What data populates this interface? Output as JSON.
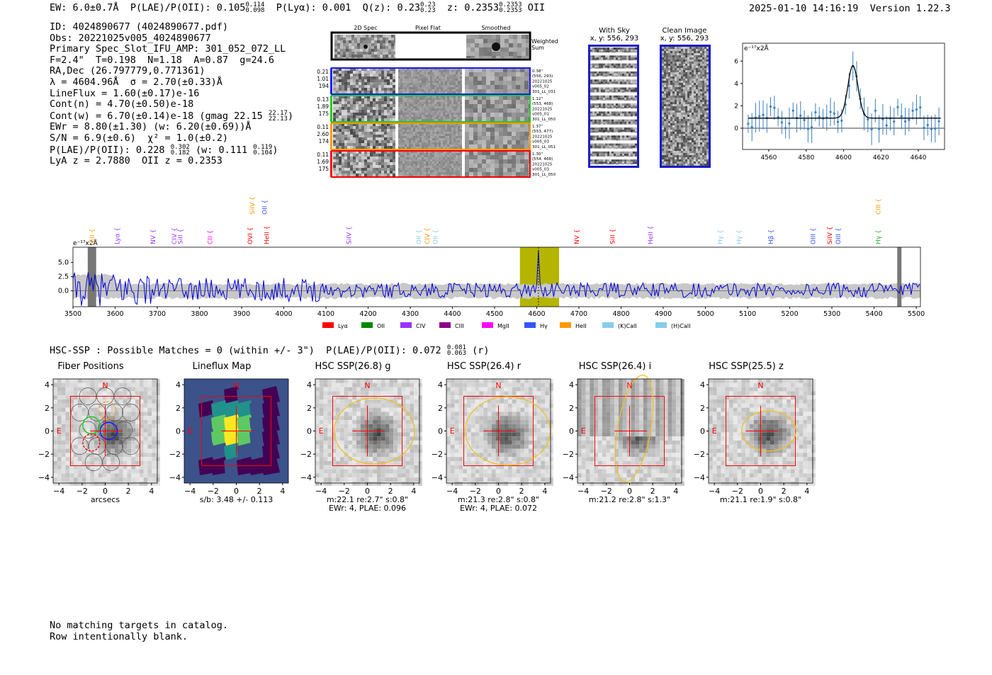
{
  "header": {
    "ew": "EW: 6.0±0.7Å",
    "plae_label": "P(LAE)/P(OII): 0.105",
    "plae_hi": "0.114",
    "plae_lo": "0.098",
    "plya": "P(Lyα): 0.001",
    "qz_label": "Q(z): 0.23",
    "qz_hi": "0.23",
    "qz_lo": "0.23",
    "z_label": "z: 0.2353",
    "z_hi": "0.2353",
    "z_lo": "0.2353",
    "z_line": "OII",
    "timestamp": "2025-01-10 14:16:19",
    "version": "Version 1.22.3"
  },
  "info": {
    "id": "ID: 4024890677 (4024890677.pdf)",
    "obs": "Obs: 20221025v005_4024890677",
    "primary": "Primary Spec_Slot_IFU_AMP: 301_052_072_LL",
    "params": "F=2.4\"  T=0.198  N=1.18  A=0.87  g=24.6",
    "radec": "RA,Dec (26.797779,0.771361)",
    "lambda": "λ = 4604.96Å  σ = 2.70(±0.33)Å",
    "lineflux": "LineFlux = 1.60(±0.17)e-16",
    "contn": "Cont(n) = 4.70(±0.50)e-18",
    "contw": "Cont(w) = 6.70(±0.14)e-18 (gmag 22.15",
    "contw_hi": "22.17",
    "contw_lo": "22.13",
    "ewr": "EWr = 8.80(±1.30) (w: 6.20(±0.69))Å",
    "sn": "S/N = 6.9(±0.6)  χ² = 1.0(±0.2)",
    "plae2": "P(LAE)/P(OII): 0.228",
    "plae2_hi": "0.302",
    "plae2_lo": "0.182",
    "plae2_w": "(w: 0.111",
    "plae2_w_hi": "0.119",
    "plae2_w_lo": "0.104",
    "lya": "LyA z = 2.7880  OII z = 0.2353"
  },
  "cutouts": {
    "col_2d": "2D Spec",
    "col_flat": "Pixel Flat",
    "col_smooth": "Smoothed",
    "weighted": "Weighted Sum",
    "rows": [
      {
        "left": [
          "0.21",
          "1.01",
          "194"
        ],
        "right": [
          "0.38\"",
          "(556, 293)",
          "20221025",
          "v005_02",
          "301_LL_031"
        ],
        "color": "#1a1aff"
      },
      {
        "left": [
          "0.13",
          "1.89",
          "175"
        ],
        "right": [
          "1.12\"",
          "(553, 468)",
          "20221025",
          "v005_01",
          "301_LL_050"
        ],
        "color": "#22cc22"
      },
      {
        "left": [
          "0.11",
          "2.60",
          "174"
        ],
        "right": [
          "1.37\"",
          "(553, 477)",
          "20221025",
          "v005_03",
          "301_LL_051"
        ],
        "color": "#ff9900"
      },
      {
        "left": [
          "0.11",
          "1.69",
          "175"
        ],
        "right": [
          "1.30\"",
          "(554, 468)",
          "20221025",
          "v005_03",
          "301_LL_050"
        ],
        "color": "#ff0000"
      }
    ]
  },
  "sky": {
    "with_sky_title": "With Sky",
    "with_sky_xy": "x, y: 556, 293",
    "clean_title": "Clean Image",
    "clean_xy": "x, y: 556, 293"
  },
  "zoom_plot": {
    "ylabel": "e⁻¹⁷x2Å",
    "yticks": [
      "0",
      "2",
      "4",
      "6"
    ],
    "xticks": [
      "4560",
      "4580",
      "4600",
      "4620",
      "4640"
    ]
  },
  "spectrum": {
    "ylabel": "e⁻¹⁷x2Å",
    "yticks": [
      "0.0",
      "2.5",
      "5.0"
    ],
    "xticks": [
      "3500",
      "3600",
      "3700",
      "3800",
      "3900",
      "4000",
      "4100",
      "4200",
      "4300",
      "4400",
      "4500",
      "4600",
      "4700",
      "4800",
      "4900",
      "5000",
      "5100",
      "5200",
      "5300",
      "5400",
      "5500"
    ],
    "lines": [
      {
        "label": "SiII",
        "color": "#ff9900",
        "w": 3545,
        "row": 1
      },
      {
        "label": "Lyα",
        "color": "#9933ff",
        "w": 3605,
        "row": 1
      },
      {
        "label": "NV",
        "color": "#9933ff",
        "w": 3690,
        "row": 1
      },
      {
        "label": "CIV",
        "color": "#9933ff",
        "w": 3740,
        "row": 1
      },
      {
        "label": "SiII",
        "color": "#9933ff",
        "w": 3755,
        "row": 1
      },
      {
        "label": "CII",
        "color": "#ff00ff",
        "w": 3825,
        "row": 1
      },
      {
        "label": "SiIV",
        "color": "#ff9900",
        "w": 3925,
        "row": 0
      },
      {
        "label": "OVI",
        "color": "#ff0000",
        "w": 3920,
        "row": 1
      },
      {
        "label": "OII",
        "color": "#3355ff",
        "w": 3955,
        "row": 0
      },
      {
        "label": "HeII",
        "color": "#ff0000",
        "w": 3960,
        "row": 1
      },
      {
        "label": "SiIV",
        "color": "#9933ff",
        "w": 4155,
        "row": 1
      },
      {
        "label": "OII",
        "color": "#88ccee",
        "w": 4320,
        "row": 1
      },
      {
        "label": "CIV",
        "color": "#ff9900",
        "w": 4340,
        "row": 1
      },
      {
        "label": "OII",
        "color": "#88ccee",
        "w": 4360,
        "row": 1
      },
      {
        "label": "NV",
        "color": "#ff0000",
        "w": 4695,
        "row": 1
      },
      {
        "label": "SiII",
        "color": "#ff0000",
        "w": 4780,
        "row": 1
      },
      {
        "label": "HeII",
        "color": "#9933ff",
        "w": 4870,
        "row": 1
      },
      {
        "label": "Hγ",
        "color": "#88ccee",
        "w": 5035,
        "row": 1
      },
      {
        "label": "Hγ",
        "color": "#88ccee",
        "w": 5080,
        "row": 1
      },
      {
        "label": "Hβ",
        "color": "#3355ff",
        "w": 5155,
        "row": 1
      },
      {
        "label": "OIII",
        "color": "#3355ff",
        "w": 5255,
        "row": 1
      },
      {
        "label": "SiIV",
        "color": "#ff0000",
        "w": 5295,
        "row": 1
      },
      {
        "label": "OIII",
        "color": "#3355ff",
        "w": 5315,
        "row": 1
      },
      {
        "label": "CIII",
        "color": "#ff9900",
        "w": 5410,
        "row": 0
      },
      {
        "label": "Hγ",
        "color": "#22aa22",
        "w": 5410,
        "row": 1
      }
    ],
    "legend": [
      {
        "label": "Lyα",
        "color": "#ff0000"
      },
      {
        "label": "OII",
        "color": "#008800"
      },
      {
        "label": "CIV",
        "color": "#9933ff"
      },
      {
        "label": "CIII",
        "color": "#880088"
      },
      {
        "label": "MgII",
        "color": "#ff00ff"
      },
      {
        "label": "Hγ",
        "color": "#3355ff"
      },
      {
        "label": "HeII",
        "color": "#ff9900"
      },
      {
        "label": "(K)CaII",
        "color": "#88ccee"
      },
      {
        "label": "(H)CaII",
        "color": "#88ccee"
      }
    ]
  },
  "hsc": {
    "summary": "HSC-SSP : Possible Matches = 0 (within +/- 3\")  P(LAE)/P(OII): 0.072",
    "summary_hi": "0.081",
    "summary_lo": "0.063",
    "summary_band": "(r)",
    "panels": [
      {
        "title": "Fiber Positions",
        "cap1": "arcsecs",
        "cap2": ""
      },
      {
        "title": "Lineflux Map",
        "cap1": "s/b: 3.48 +/- 0.113",
        "cap2": ""
      },
      {
        "title": "HSC SSP(26.8) g",
        "cap1": "m:22.1  re:2.7\"  s:0.8\"",
        "cap2": "EWr: 4, PLAE: 0.096"
      },
      {
        "title": "HSC SSP(26.4) r",
        "cap1": "m:21.3  re:2.8\"  s:0.8\"",
        "cap2": "EWr: 4, PLAE: 0.072"
      },
      {
        "title": "HSC SSP(26.4) i",
        "cap1": "m:21.2  re:2.8\"  s:1.3\"",
        "cap2": ""
      },
      {
        "title": "HSC SSP(25.5) z",
        "cap1": "m:21.1  re:1.9\"  s:0.8\"",
        "cap2": ""
      }
    ],
    "yticks": [
      "4",
      "2",
      "0",
      "−2",
      "−4"
    ],
    "xticks": [
      "−4",
      "−2",
      "0",
      "2",
      "4"
    ],
    "compass_n": "N",
    "compass_e": "E"
  },
  "footer": {
    "line1": "No matching targets in catalog.",
    "line2": "Row intentionally blank."
  }
}
